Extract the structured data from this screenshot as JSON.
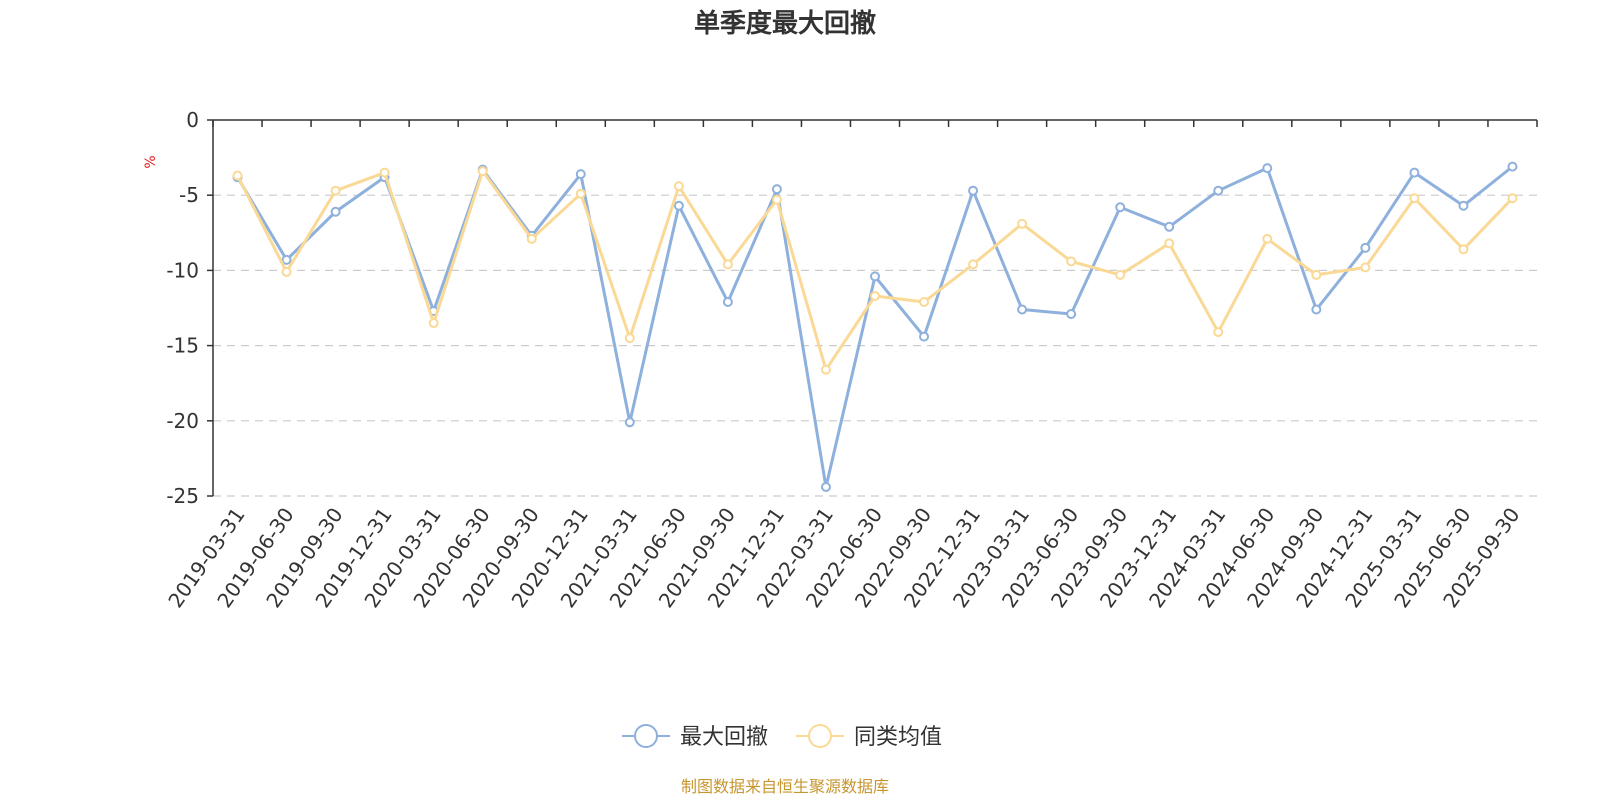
{
  "chart_data": {
    "type": "line",
    "title": "单季度最大回撤",
    "ylabel": "%",
    "ylim": [
      -25,
      0
    ],
    "yticks": [
      0,
      -5,
      -10,
      -15,
      -20,
      -25
    ],
    "grid": true,
    "legend_position": "bottom",
    "categories": [
      "2019-03-31",
      "2019-06-30",
      "2019-09-30",
      "2019-12-31",
      "2020-03-31",
      "2020-06-30",
      "2020-09-30",
      "2020-12-31",
      "2021-03-31",
      "2021-06-30",
      "2021-09-30",
      "2021-12-31",
      "2022-03-31",
      "2022-06-30",
      "2022-09-30",
      "2022-12-31",
      "2023-03-31",
      "2023-06-30",
      "2023-09-30",
      "2023-12-31",
      "2024-03-31",
      "2024-06-30",
      "2024-09-30",
      "2024-12-31",
      "2025-03-31",
      "2025-06-30",
      "2025-09-30"
    ],
    "series": [
      {
        "name": "最大回撤",
        "color": "#8eb0dc",
        "values": [
          -3.8,
          -9.3,
          -6.1,
          -3.8,
          -12.7,
          -3.3,
          -7.7,
          -3.6,
          -20.1,
          -5.7,
          -12.1,
          -4.6,
          -24.4,
          -10.4,
          -14.4,
          -4.7,
          -12.6,
          -12.9,
          -5.8,
          -7.1,
          -4.7,
          -3.2,
          -12.6,
          -8.5,
          -3.5,
          -5.7,
          -3.1
        ]
      },
      {
        "name": "同类均值",
        "color": "#fad996",
        "values": [
          -3.7,
          -10.1,
          -4.7,
          -3.5,
          -13.5,
          -3.4,
          -7.9,
          -4.9,
          -14.5,
          -4.4,
          -9.6,
          -5.3,
          -16.6,
          -11.7,
          -12.1,
          -9.6,
          -6.9,
          -9.4,
          -10.3,
          -8.2,
          -14.1,
          -7.9,
          -10.3,
          -9.8,
          -5.2,
          -8.6,
          -5.2
        ]
      }
    ]
  },
  "source_text": "制图数据来自恒生聚源数据库",
  "colors": {
    "source": "#c8962e",
    "unit": "#e02020",
    "grid": "#cccccc",
    "axis": "#333333"
  }
}
